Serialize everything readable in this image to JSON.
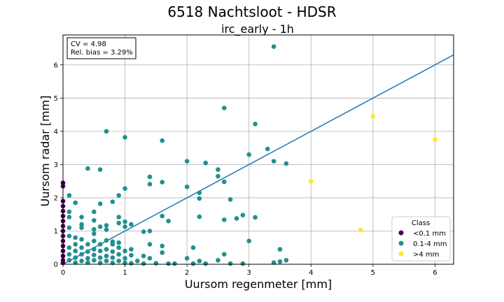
{
  "chart_data": {
    "type": "scatter",
    "title": "6518 Nachtsloot - HDSR",
    "subtitle": "irc_early - 1h",
    "xlabel": "Uursom regenmeter [mm]",
    "ylabel": "Uursom radar [mm]",
    "xlim": [
      0,
      6.3
    ],
    "ylim": [
      0,
      6.9
    ],
    "xticks": [
      "0",
      "1",
      "2",
      "3",
      "4",
      "5",
      "6"
    ],
    "yticks": [
      "0",
      "1",
      "2",
      "3",
      "4",
      "5",
      "6"
    ],
    "grid": true,
    "stats": {
      "cv": "CV = 4.98",
      "bias": "Rel. bias = 3.29%"
    },
    "fit_line": {
      "slope": 1.0,
      "intercept": 0.0
    },
    "legend": {
      "title": "Class",
      "placement": "lower-right"
    },
    "series": [
      {
        "name": "<0.1 mm",
        "color": "#440154",
        "points": [
          [
            0,
            2.45
          ],
          [
            0,
            2.35
          ],
          [
            0,
            1.9
          ],
          [
            0,
            1.75
          ],
          [
            0,
            1.6
          ],
          [
            0,
            1.45
          ],
          [
            0,
            1.3
          ],
          [
            0,
            1.15
          ],
          [
            0,
            1.0
          ],
          [
            0,
            0.85
          ],
          [
            0,
            0.7
          ],
          [
            0,
            0.55
          ],
          [
            0,
            0.4
          ],
          [
            0,
            0.25
          ],
          [
            0,
            0.12
          ],
          [
            0,
            0.04
          ]
        ]
      },
      {
        "name": "0.1-4 mm",
        "color": "#21908d",
        "points": [
          [
            3.4,
            6.55
          ],
          [
            2.6,
            4.7
          ],
          [
            3.1,
            4.22
          ],
          [
            0.7,
            4.0
          ],
          [
            1.0,
            3.82
          ],
          [
            1.6,
            3.72
          ],
          [
            3.3,
            3.47
          ],
          [
            3.0,
            3.3
          ],
          [
            3.4,
            3.1
          ],
          [
            3.6,
            3.03
          ],
          [
            2.0,
            3.1
          ],
          [
            2.3,
            3.05
          ],
          [
            0.4,
            2.88
          ],
          [
            0.6,
            2.85
          ],
          [
            2.5,
            2.85
          ],
          [
            1.4,
            2.63
          ],
          [
            2.5,
            2.65
          ],
          [
            1.6,
            2.47
          ],
          [
            2.6,
            2.48
          ],
          [
            1.4,
            2.41
          ],
          [
            2.0,
            2.33
          ],
          [
            1.0,
            2.28
          ],
          [
            2.2,
            2.15
          ],
          [
            0.9,
            2.07
          ],
          [
            0.1,
            2.07
          ],
          [
            2.2,
            1.98
          ],
          [
            2.7,
            1.95
          ],
          [
            0.8,
            1.88
          ],
          [
            0.2,
            1.85
          ],
          [
            0.6,
            1.82
          ],
          [
            0.5,
            1.58
          ],
          [
            0.1,
            1.58
          ],
          [
            1.6,
            1.45
          ],
          [
            2.2,
            1.43
          ],
          [
            2.9,
            1.48
          ],
          [
            2.8,
            1.38
          ],
          [
            3.1,
            1.41
          ],
          [
            0.9,
            1.42
          ],
          [
            0.1,
            1.42
          ],
          [
            0.3,
            1.42
          ],
          [
            0.5,
            1.32
          ],
          [
            1.7,
            1.3
          ],
          [
            2.6,
            1.34
          ],
          [
            1.0,
            1.28
          ],
          [
            0.9,
            1.24
          ],
          [
            1.1,
            1.2
          ],
          [
            0.3,
            1.2
          ],
          [
            0.6,
            1.13
          ],
          [
            0.7,
            1.17
          ],
          [
            1.0,
            1.13
          ],
          [
            0.1,
            1.1
          ],
          [
            0.3,
            1.1
          ],
          [
            0.5,
            1.05
          ],
          [
            0.7,
            1.04
          ],
          [
            1.3,
            0.98
          ],
          [
            1.4,
            1.0
          ],
          [
            0.5,
            0.92
          ],
          [
            0.1,
            0.85
          ],
          [
            0.2,
            0.8
          ],
          [
            0.3,
            0.75
          ],
          [
            0.5,
            0.7
          ],
          [
            0.7,
            0.72
          ],
          [
            0.8,
            0.68
          ],
          [
            3.0,
            0.7
          ],
          [
            0.2,
            0.6
          ],
          [
            0.4,
            0.6
          ],
          [
            0.6,
            0.6
          ],
          [
            0.8,
            0.6
          ],
          [
            0.9,
            0.65
          ],
          [
            1.4,
            0.6
          ],
          [
            1.6,
            0.55
          ],
          [
            2.1,
            0.5
          ],
          [
            0.1,
            0.5
          ],
          [
            0.3,
            0.5
          ],
          [
            0.5,
            0.45
          ],
          [
            0.7,
            0.45
          ],
          [
            0.9,
            0.5
          ],
          [
            1.1,
            0.45
          ],
          [
            3.5,
            0.45
          ],
          [
            0.2,
            0.4
          ],
          [
            0.4,
            0.38
          ],
          [
            0.6,
            0.4
          ],
          [
            0.8,
            0.38
          ],
          [
            1.0,
            0.4
          ],
          [
            1.6,
            0.35
          ],
          [
            2.6,
            0.3
          ],
          [
            0.1,
            0.3
          ],
          [
            0.3,
            0.3
          ],
          [
            0.5,
            0.28
          ],
          [
            0.7,
            0.25
          ],
          [
            0.9,
            0.3
          ],
          [
            1.1,
            0.27
          ],
          [
            1.3,
            0.25
          ],
          [
            0.2,
            0.2
          ],
          [
            0.4,
            0.18
          ],
          [
            0.6,
            0.2
          ],
          [
            0.8,
            0.2
          ],
          [
            1.0,
            0.18
          ],
          [
            1.4,
            0.18
          ],
          [
            2.0,
            0.18
          ],
          [
            0.1,
            0.12
          ],
          [
            0.3,
            0.1
          ],
          [
            0.5,
            0.12
          ],
          [
            0.7,
            0.1
          ],
          [
            0.9,
            0.1
          ],
          [
            1.2,
            0.1
          ],
          [
            2.2,
            0.1
          ],
          [
            2.5,
            0.12
          ],
          [
            3.6,
            0.12
          ],
          [
            0.2,
            0.05
          ],
          [
            0.4,
            0.05
          ],
          [
            0.6,
            0.04
          ],
          [
            0.8,
            0.04
          ],
          [
            1.0,
            0.04
          ],
          [
            1.1,
            0.03
          ],
          [
            1.3,
            0.02
          ],
          [
            1.5,
            0.03
          ],
          [
            1.7,
            0.02
          ],
          [
            1.8,
            0.02
          ],
          [
            2.1,
            0.02
          ],
          [
            2.3,
            0.02
          ],
          [
            2.7,
            0.02
          ],
          [
            2.9,
            0.02
          ],
          [
            3.4,
            0.05
          ],
          [
            3.5,
            0.08
          ]
        ]
      },
      {
        "name": ">4 mm",
        "color": "#fde725",
        "points": [
          [
            5.0,
            4.45
          ],
          [
            6.0,
            3.75
          ],
          [
            4.0,
            2.5
          ],
          [
            4.8,
            1.03
          ]
        ]
      }
    ]
  }
}
